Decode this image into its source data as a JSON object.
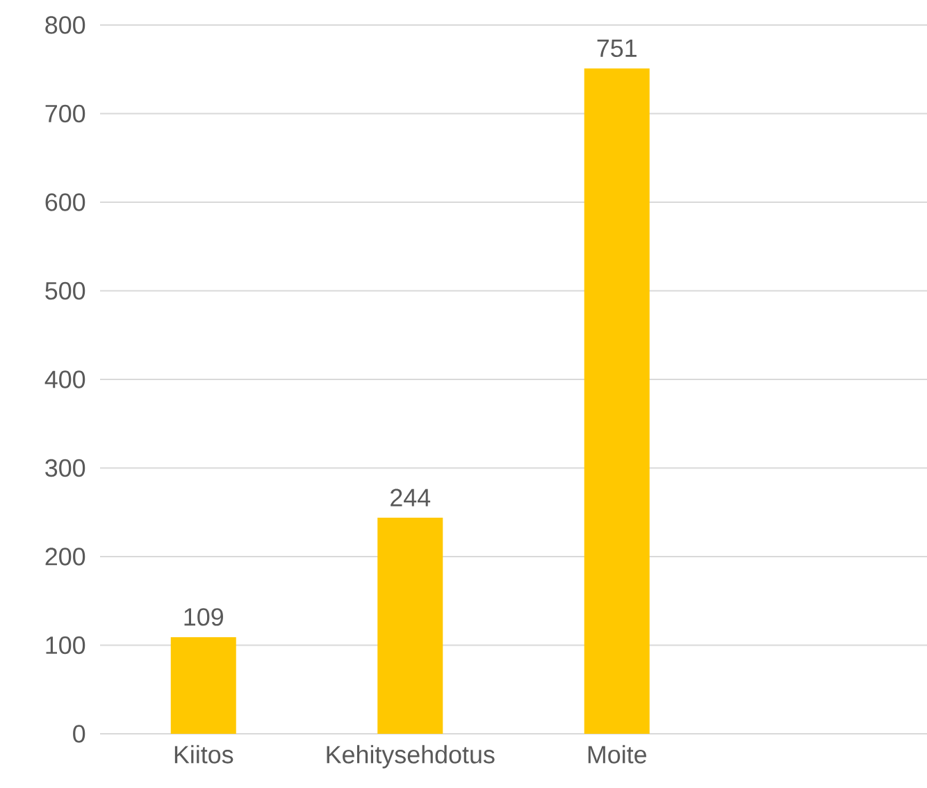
{
  "chart_data": {
    "type": "bar",
    "categories": [
      "Kiitos",
      "Kehitysehdotus",
      "Moite",
      null
    ],
    "values": [
      109,
      244,
      751,
      null
    ],
    "color": "#ffc800",
    "ylim": [
      0,
      800
    ],
    "yticks": [
      0,
      100,
      200,
      300,
      400,
      500,
      600,
      700,
      800
    ],
    "grid": "y",
    "data_labels": true
  }
}
